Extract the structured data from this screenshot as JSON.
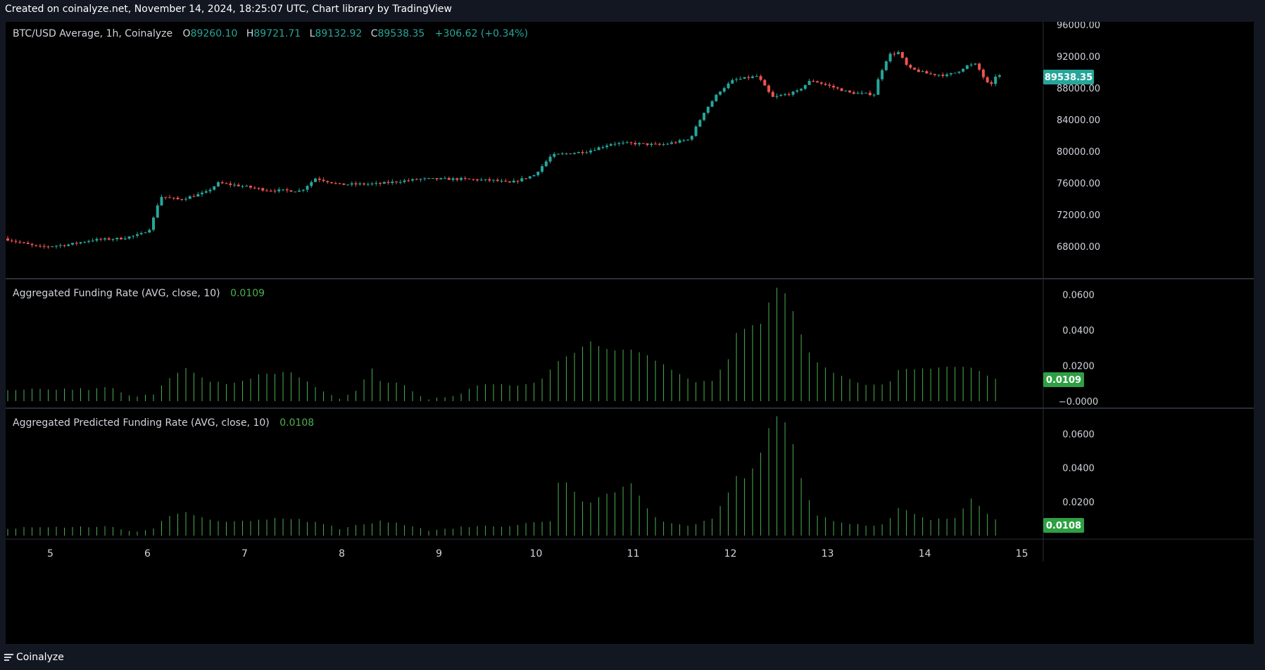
{
  "header": {
    "credit": "Created on coinalyze.net, November 14, 2024, 18:25:07 UTC, Chart library by TradingView"
  },
  "footer": {
    "brand": "Coinalyze",
    "menu_icon": "hamburger-menu-icon"
  },
  "colors": {
    "up": "#26a69a",
    "down": "#ef5350",
    "funding": "#4caf50",
    "funding_badge": "#2ea043",
    "price_badge": "#26a69a",
    "text": "#d1d4dc",
    "grid": "#2a2e39"
  },
  "chart_data": [
    {
      "type": "candlestick",
      "title": "BTC/USD Average, 1h, Coinalyze",
      "ohlc_legend": {
        "o_label": "O",
        "open": "89260.10",
        "h_label": "H",
        "high": "89721.71",
        "l_label": "L",
        "low": "89132.92",
        "c_label": "C",
        "close": "89538.35",
        "change": "+306.62 (+0.34%)"
      },
      "last_price_label": "89538.35",
      "y_ticks": [
        "96000.00",
        "92000.00",
        "88000.00",
        "84000.00",
        "80000.00",
        "76000.00",
        "72000.00",
        "68000.00"
      ],
      "ylim": [
        64000,
        96000
      ],
      "x_ticks": [
        "5",
        "6",
        "7",
        "8",
        "9",
        "10",
        "11",
        "12",
        "13",
        "14",
        "15"
      ],
      "x_tick_values": [
        5,
        6,
        7,
        8,
        9,
        10,
        11,
        12,
        13,
        14,
        15
      ],
      "xlim": [
        4.54,
        15.22
      ],
      "price_path": [
        [
          4.54,
          69000
        ],
        [
          4.9,
          67900
        ],
        [
          5.2,
          68200
        ],
        [
          5.45,
          68800
        ],
        [
          5.75,
          69000
        ],
        [
          5.95,
          69500
        ],
        [
          6.05,
          70300
        ],
        [
          6.15,
          74300
        ],
        [
          6.35,
          73900
        ],
        [
          6.62,
          74800
        ],
        [
          6.75,
          76000
        ],
        [
          7.0,
          75600
        ],
        [
          7.25,
          75100
        ],
        [
          7.6,
          75000
        ],
        [
          7.75,
          76600
        ],
        [
          8.0,
          75800
        ],
        [
          8.4,
          75900
        ],
        [
          8.6,
          76200
        ],
        [
          8.85,
          76500
        ],
        [
          9.25,
          76500
        ],
        [
          9.6,
          76300
        ],
        [
          9.75,
          76000
        ],
        [
          10.0,
          77000
        ],
        [
          10.18,
          79500
        ],
        [
          10.55,
          80000
        ],
        [
          10.8,
          81000
        ],
        [
          11.0,
          81000
        ],
        [
          11.3,
          80800
        ],
        [
          11.6,
          81500
        ],
        [
          11.75,
          85000
        ],
        [
          11.9,
          87500
        ],
        [
          12.05,
          89000
        ],
        [
          12.3,
          89500
        ],
        [
          12.45,
          86800
        ],
        [
          12.7,
          87500
        ],
        [
          12.85,
          89000
        ],
        [
          13.05,
          88200
        ],
        [
          13.25,
          87400
        ],
        [
          13.5,
          87200
        ],
        [
          13.55,
          89500
        ],
        [
          13.65,
          92200
        ],
        [
          13.75,
          92500
        ],
        [
          13.85,
          90500
        ],
        [
          14.05,
          89800
        ],
        [
          14.25,
          89600
        ],
        [
          14.35,
          90000
        ],
        [
          14.45,
          90800
        ],
        [
          14.55,
          91000
        ],
        [
          14.65,
          88800
        ],
        [
          14.7,
          88200
        ],
        [
          14.75,
          89538
        ]
      ]
    },
    {
      "type": "bar",
      "title": "Aggregated Funding Rate (AVG, close, 10)",
      "last_value": "0.0109",
      "y_ticks": [
        "0.0600",
        "0.0400",
        "0.0200",
        "−0.0000"
      ],
      "ylim": [
        -0.002,
        0.067
      ],
      "profile": [
        [
          4.54,
          0.0068
        ],
        [
          5.4,
          0.0068
        ],
        [
          5.6,
          0.0075
        ],
        [
          5.85,
          0.0025
        ],
        [
          6.05,
          0.0035
        ],
        [
          6.15,
          0.0105
        ],
        [
          6.35,
          0.019
        ],
        [
          6.6,
          0.011
        ],
        [
          6.85,
          0.0095
        ],
        [
          7.15,
          0.015
        ],
        [
          7.45,
          0.0165
        ],
        [
          7.75,
          0.007
        ],
        [
          7.95,
          0.0015
        ],
        [
          8.15,
          0.007
        ],
        [
          8.3,
          0.0195
        ],
        [
          8.35,
          0.011
        ],
        [
          8.6,
          0.01
        ],
        [
          8.85,
          0.001
        ],
        [
          9.1,
          0.002
        ],
        [
          9.4,
          0.009
        ],
        [
          9.7,
          0.009
        ],
        [
          10.0,
          0.01
        ],
        [
          10.18,
          0.022
        ],
        [
          10.45,
          0.03
        ],
        [
          10.5,
          0.034
        ],
        [
          10.8,
          0.028
        ],
        [
          11.0,
          0.029
        ],
        [
          11.3,
          0.02
        ],
        [
          11.6,
          0.011
        ],
        [
          11.8,
          0.012
        ],
        [
          11.95,
          0.023
        ],
        [
          12.05,
          0.04
        ],
        [
          12.3,
          0.044
        ],
        [
          12.4,
          0.06
        ],
        [
          12.48,
          0.066
        ],
        [
          12.6,
          0.055
        ],
        [
          12.75,
          0.03
        ],
        [
          12.9,
          0.02
        ],
        [
          13.1,
          0.015
        ],
        [
          13.35,
          0.009
        ],
        [
          13.6,
          0.009
        ],
        [
          13.7,
          0.018
        ],
        [
          14.0,
          0.018
        ],
        [
          14.2,
          0.02
        ],
        [
          14.5,
          0.018
        ],
        [
          14.7,
          0.013
        ],
        [
          14.75,
          0.0109
        ]
      ]
    },
    {
      "type": "bar",
      "title": "Aggregated Predicted Funding Rate (AVG, close, 10)",
      "last_value": "0.0108",
      "y_ticks": [
        "0.0600",
        "0.0400",
        "0.0200"
      ],
      "ylim": [
        0.0,
        0.073
      ],
      "profile": [
        [
          4.54,
          0.0045
        ],
        [
          5.6,
          0.0055
        ],
        [
          5.75,
          0.0025
        ],
        [
          5.95,
          0.0025
        ],
        [
          6.05,
          0.0045
        ],
        [
          6.15,
          0.01
        ],
        [
          6.35,
          0.014
        ],
        [
          6.6,
          0.0095
        ],
        [
          6.9,
          0.008
        ],
        [
          7.2,
          0.01
        ],
        [
          7.4,
          0.0105
        ],
        [
          7.8,
          0.007
        ],
        [
          7.95,
          0.0035
        ],
        [
          8.15,
          0.006
        ],
        [
          8.35,
          0.0085
        ],
        [
          8.7,
          0.006
        ],
        [
          8.9,
          0.003
        ],
        [
          9.2,
          0.005
        ],
        [
          9.6,
          0.0055
        ],
        [
          9.8,
          0.0065
        ],
        [
          10.0,
          0.0075
        ],
        [
          10.15,
          0.009
        ],
        [
          10.22,
          0.036
        ],
        [
          10.4,
          0.024
        ],
        [
          10.5,
          0.018
        ],
        [
          10.7,
          0.025
        ],
        [
          10.8,
          0.025
        ],
        [
          10.95,
          0.032
        ],
        [
          11.1,
          0.018
        ],
        [
          11.25,
          0.008
        ],
        [
          11.6,
          0.006
        ],
        [
          11.8,
          0.01
        ],
        [
          11.95,
          0.024
        ],
        [
          12.0,
          0.036
        ],
        [
          12.15,
          0.033
        ],
        [
          12.3,
          0.05
        ],
        [
          12.4,
          0.068
        ],
        [
          12.5,
          0.072
        ],
        [
          12.6,
          0.06
        ],
        [
          12.7,
          0.035
        ],
        [
          12.85,
          0.012
        ],
        [
          13.1,
          0.008
        ],
        [
          13.5,
          0.0055
        ],
        [
          13.6,
          0.009
        ],
        [
          13.7,
          0.017
        ],
        [
          13.85,
          0.013
        ],
        [
          14.05,
          0.009
        ],
        [
          14.3,
          0.011
        ],
        [
          14.45,
          0.022
        ],
        [
          14.55,
          0.017
        ],
        [
          14.7,
          0.009
        ],
        [
          14.75,
          0.0108
        ]
      ]
    }
  ]
}
